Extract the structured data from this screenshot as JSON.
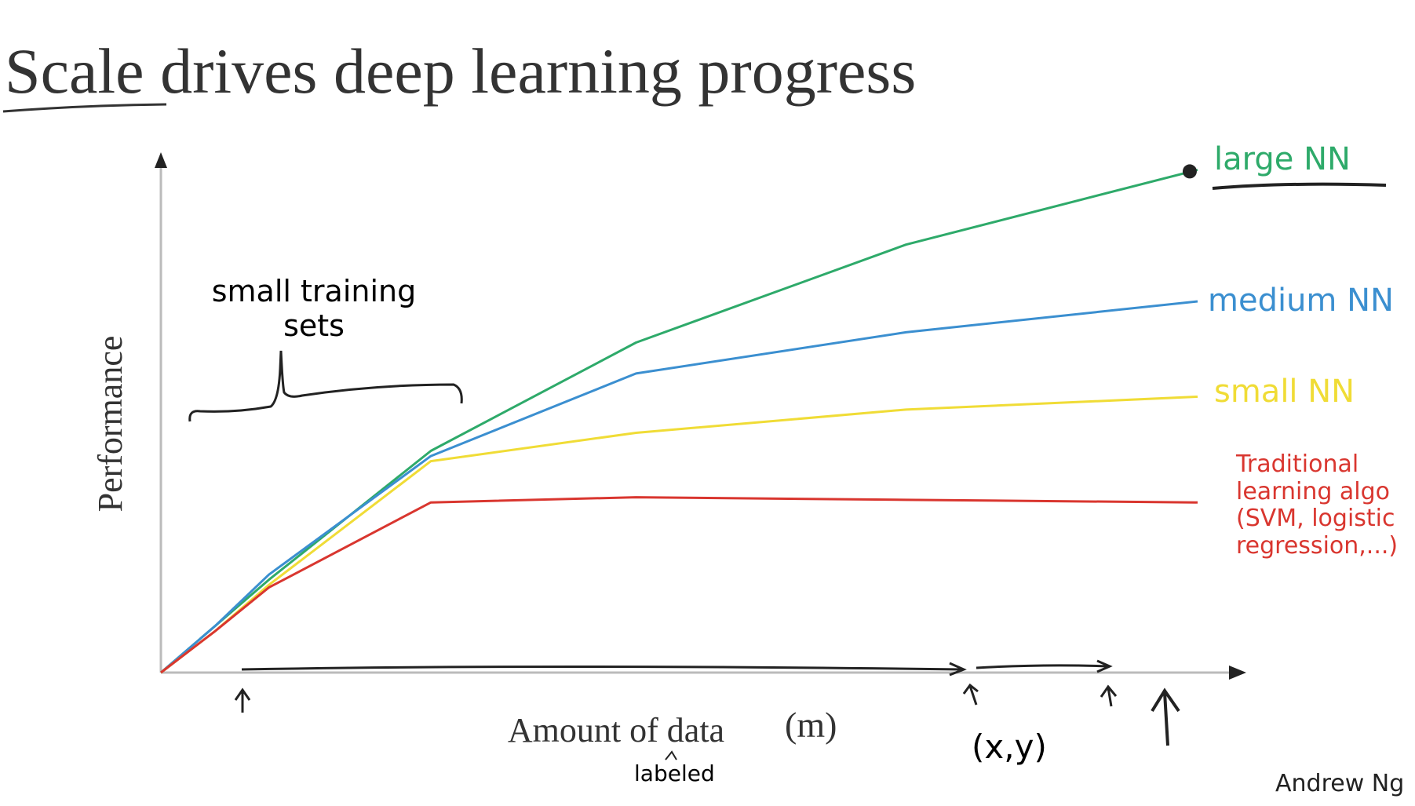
{
  "chart_data": {
    "type": "line",
    "title": "Scale drives deep learning progress",
    "xlabel": "Amount of data",
    "ylabel": "Performance",
    "xlim": [
      0,
      100
    ],
    "ylim": [
      0,
      100
    ],
    "x": [
      0,
      5,
      10,
      25,
      44,
      69,
      96
    ],
    "series": [
      {
        "name": "large NN",
        "color": "#2eaa6a",
        "values": [
          0,
          9,
          18,
          43,
          64,
          83,
          97.5
        ]
      },
      {
        "name": "medium NN",
        "color": "#3b8fd0",
        "values": [
          0,
          9,
          19,
          42,
          58,
          66,
          72
        ]
      },
      {
        "name": "small NN",
        "color": "#f0dc36",
        "values": [
          0,
          8,
          17,
          41,
          46.5,
          51,
          53.5
        ]
      },
      {
        "name": "Traditional learning algo (SVM, logistic regression,...)",
        "color": "#d9362f",
        "values": [
          0,
          8,
          16.5,
          33,
          34,
          33.5,
          33
        ]
      }
    ],
    "annotations": [
      "small training sets",
      "(m)",
      "labeled",
      "(x,y)"
    ],
    "author": "Andrew Ng"
  }
}
